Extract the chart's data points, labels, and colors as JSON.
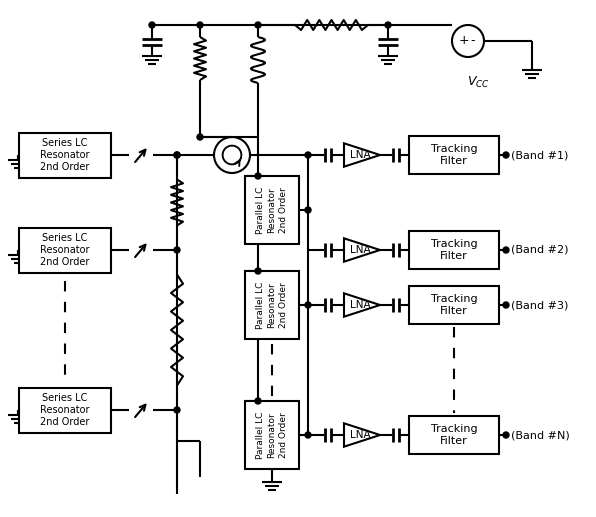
{
  "bg": "#ffffff",
  "lc": "#000000",
  "lw": 1.5,
  "bands": [
    "(Band #1)",
    "(Band #2)",
    "(Band #3)",
    "(Band #N)"
  ],
  "vcc_label": "$V_{CC}$",
  "lna_label": "LNA",
  "tracking_label": "Tracking\nFilter",
  "series_label": "Series LC\nResonator\n2nd Order",
  "parallel_label": "Parallel LC\nResonator\n2nd Order",
  "figw": 5.96,
  "figh": 5.17,
  "dpi": 100
}
